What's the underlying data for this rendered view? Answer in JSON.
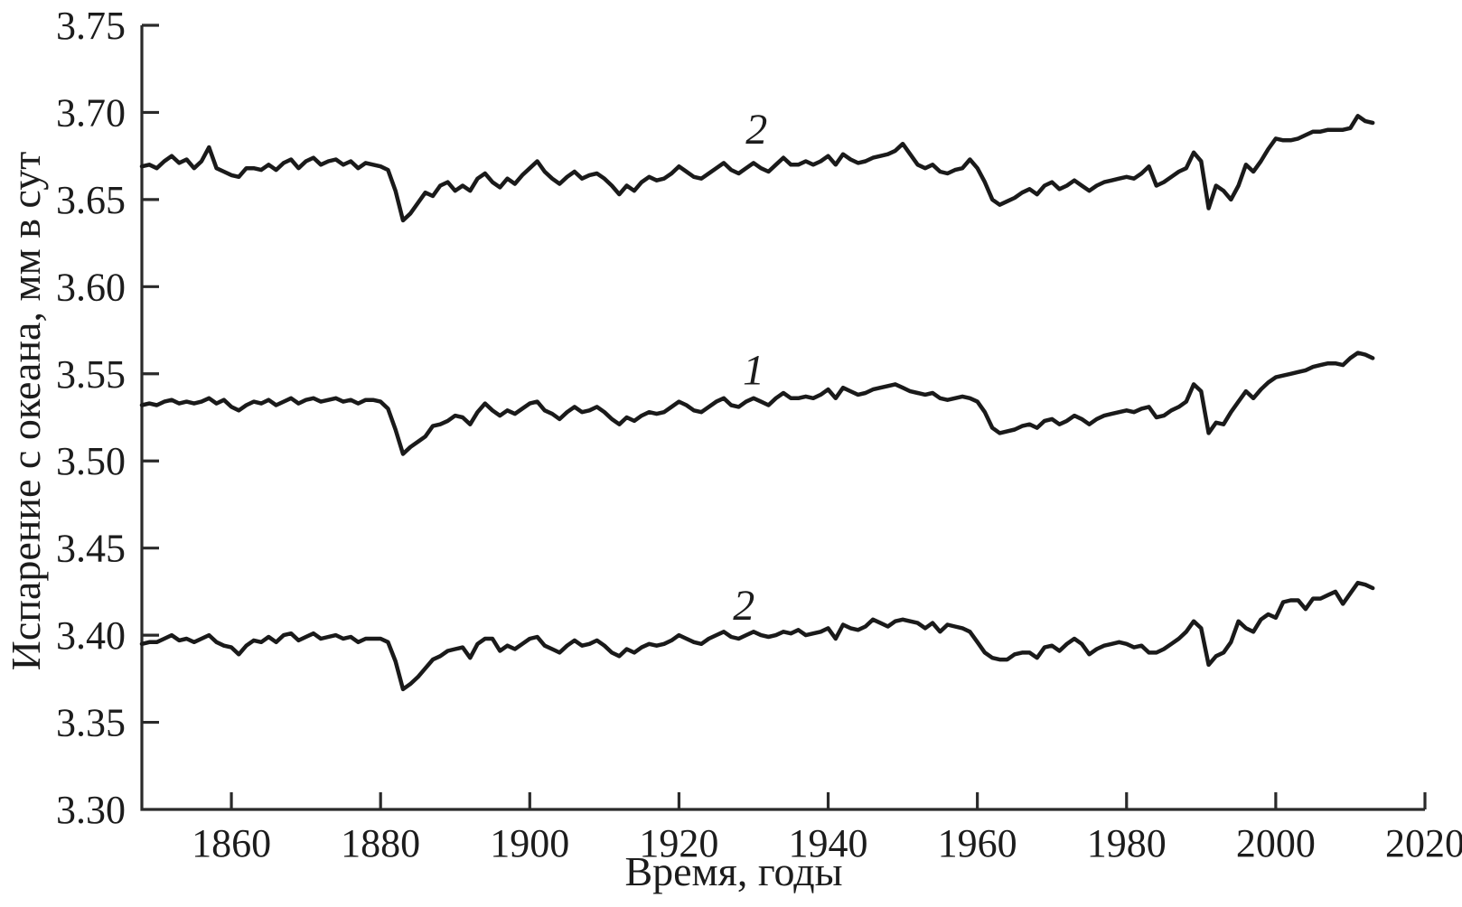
{
  "figure": {
    "background": "#ffffff",
    "line_color": "#1a1a1a",
    "axis_color": "#2a2a2a"
  },
  "chart_data": {
    "type": "line",
    "title": "",
    "xlabel": "Время, годы",
    "ylabel": "Испарение с океана, мм в сут",
    "xlim": [
      1848,
      2020
    ],
    "ylim": [
      3.3,
      3.75
    ],
    "x_ticks": [
      1860,
      1880,
      1900,
      1920,
      1940,
      1960,
      1980,
      2000,
      2020
    ],
    "y_ticks": [
      3.3,
      3.35,
      3.4,
      3.45,
      3.5,
      3.55,
      3.6,
      3.65,
      3.7,
      3.75
    ],
    "grid": false,
    "legend_position": "none",
    "x_start": 1848,
    "x_step": 1,
    "annotations": [
      {
        "text": "2",
        "year": 1930.4,
        "value": 3.682
      },
      {
        "text": "1",
        "year": 1930.0,
        "value": 3.544
      },
      {
        "text": "2",
        "year": 1928.7,
        "value": 3.409
      }
    ],
    "series": [
      {
        "name": "curve-2-upper",
        "label": "2",
        "values": [
          3.669,
          3.67,
          3.668,
          3.672,
          3.675,
          3.671,
          3.673,
          3.668,
          3.672,
          3.68,
          3.668,
          3.666,
          3.664,
          3.663,
          3.668,
          3.668,
          3.667,
          3.67,
          3.667,
          3.671,
          3.673,
          3.668,
          3.672,
          3.674,
          3.67,
          3.672,
          3.673,
          3.67,
          3.672,
          3.668,
          3.671,
          3.67,
          3.669,
          3.667,
          3.655,
          3.638,
          3.642,
          3.648,
          3.654,
          3.652,
          3.658,
          3.66,
          3.655,
          3.658,
          3.655,
          3.662,
          3.665,
          3.66,
          3.657,
          3.662,
          3.659,
          3.664,
          3.668,
          3.672,
          3.666,
          3.662,
          3.659,
          3.663,
          3.666,
          3.662,
          3.664,
          3.665,
          3.662,
          3.658,
          3.653,
          3.658,
          3.655,
          3.66,
          3.663,
          3.661,
          3.662,
          3.665,
          3.669,
          3.666,
          3.663,
          3.662,
          3.665,
          3.668,
          3.671,
          3.667,
          3.665,
          3.668,
          3.671,
          3.668,
          3.666,
          3.67,
          3.674,
          3.67,
          3.67,
          3.672,
          3.67,
          3.672,
          3.675,
          3.67,
          3.676,
          3.673,
          3.671,
          3.672,
          3.674,
          3.675,
          3.676,
          3.678,
          3.682,
          3.676,
          3.67,
          3.668,
          3.67,
          3.666,
          3.665,
          3.667,
          3.668,
          3.673,
          3.668,
          3.66,
          3.65,
          3.647,
          3.649,
          3.651,
          3.654,
          3.656,
          3.653,
          3.658,
          3.66,
          3.656,
          3.658,
          3.661,
          3.658,
          3.655,
          3.658,
          3.66,
          3.661,
          3.662,
          3.663,
          3.662,
          3.665,
          3.669,
          3.658,
          3.66,
          3.663,
          3.666,
          3.668,
          3.677,
          3.672,
          3.645,
          3.658,
          3.655,
          3.65,
          3.658,
          3.67,
          3.666,
          3.672,
          3.679,
          3.685,
          3.684,
          3.684,
          3.685,
          3.687,
          3.689,
          3.689,
          3.69,
          3.69,
          3.69,
          3.691,
          3.698,
          3.695,
          3.694
        ]
      },
      {
        "name": "curve-1-middle",
        "label": "1",
        "values": [
          3.532,
          3.533,
          3.532,
          3.534,
          3.535,
          3.533,
          3.534,
          3.533,
          3.534,
          3.536,
          3.533,
          3.535,
          3.531,
          3.529,
          3.532,
          3.534,
          3.533,
          3.535,
          3.532,
          3.534,
          3.536,
          3.533,
          3.535,
          3.536,
          3.534,
          3.535,
          3.536,
          3.534,
          3.535,
          3.533,
          3.535,
          3.535,
          3.534,
          3.53,
          3.518,
          3.504,
          3.508,
          3.511,
          3.514,
          3.52,
          3.521,
          3.523,
          3.526,
          3.525,
          3.521,
          3.528,
          3.533,
          3.529,
          3.526,
          3.529,
          3.527,
          3.53,
          3.533,
          3.534,
          3.529,
          3.527,
          3.524,
          3.528,
          3.531,
          3.528,
          3.529,
          3.531,
          3.528,
          3.524,
          3.521,
          3.525,
          3.523,
          3.526,
          3.528,
          3.527,
          3.528,
          3.531,
          3.534,
          3.532,
          3.529,
          3.528,
          3.531,
          3.534,
          3.536,
          3.532,
          3.531,
          3.534,
          3.536,
          3.534,
          3.532,
          3.536,
          3.539,
          3.536,
          3.536,
          3.537,
          3.536,
          3.538,
          3.541,
          3.536,
          3.542,
          3.54,
          3.538,
          3.539,
          3.541,
          3.542,
          3.543,
          3.544,
          3.542,
          3.54,
          3.539,
          3.538,
          3.539,
          3.536,
          3.535,
          3.536,
          3.537,
          3.536,
          3.534,
          3.528,
          3.519,
          3.516,
          3.517,
          3.518,
          3.52,
          3.521,
          3.519,
          3.523,
          3.524,
          3.521,
          3.523,
          3.526,
          3.524,
          3.521,
          3.524,
          3.526,
          3.527,
          3.528,
          3.529,
          3.528,
          3.53,
          3.531,
          3.525,
          3.526,
          3.529,
          3.531,
          3.534,
          3.544,
          3.54,
          3.516,
          3.522,
          3.521,
          3.528,
          3.534,
          3.54,
          3.536,
          3.541,
          3.545,
          3.548,
          3.549,
          3.55,
          3.551,
          3.552,
          3.554,
          3.555,
          3.556,
          3.556,
          3.555,
          3.559,
          3.562,
          3.561,
          3.559
        ]
      },
      {
        "name": "curve-2-lower",
        "label": "2",
        "values": [
          3.395,
          3.396,
          3.396,
          3.398,
          3.4,
          3.397,
          3.398,
          3.396,
          3.398,
          3.4,
          3.396,
          3.394,
          3.393,
          3.389,
          3.394,
          3.397,
          3.396,
          3.399,
          3.396,
          3.4,
          3.401,
          3.397,
          3.399,
          3.401,
          3.398,
          3.399,
          3.4,
          3.398,
          3.399,
          3.396,
          3.398,
          3.398,
          3.398,
          3.396,
          3.385,
          3.369,
          3.372,
          3.376,
          3.381,
          3.386,
          3.388,
          3.391,
          3.392,
          3.393,
          3.387,
          3.395,
          3.398,
          3.398,
          3.391,
          3.394,
          3.392,
          3.395,
          3.398,
          3.399,
          3.394,
          3.392,
          3.39,
          3.394,
          3.397,
          3.394,
          3.395,
          3.397,
          3.394,
          3.39,
          3.388,
          3.392,
          3.39,
          3.393,
          3.395,
          3.394,
          3.395,
          3.397,
          3.4,
          3.398,
          3.396,
          3.395,
          3.398,
          3.4,
          3.402,
          3.399,
          3.398,
          3.4,
          3.402,
          3.4,
          3.399,
          3.4,
          3.402,
          3.401,
          3.403,
          3.4,
          3.401,
          3.402,
          3.404,
          3.398,
          3.406,
          3.404,
          3.403,
          3.405,
          3.409,
          3.407,
          3.405,
          3.408,
          3.409,
          3.408,
          3.407,
          3.404,
          3.407,
          3.402,
          3.406,
          3.405,
          3.404,
          3.402,
          3.396,
          3.39,
          3.387,
          3.386,
          3.386,
          3.389,
          3.39,
          3.39,
          3.387,
          3.393,
          3.394,
          3.391,
          3.395,
          3.398,
          3.395,
          3.389,
          3.392,
          3.394,
          3.395,
          3.396,
          3.395,
          3.393,
          3.394,
          3.39,
          3.39,
          3.392,
          3.395,
          3.398,
          3.402,
          3.408,
          3.404,
          3.383,
          3.388,
          3.39,
          3.396,
          3.408,
          3.404,
          3.402,
          3.409,
          3.412,
          3.41,
          3.419,
          3.42,
          3.42,
          3.415,
          3.421,
          3.421,
          3.423,
          3.425,
          3.418,
          3.424,
          3.43,
          3.429,
          3.427
        ]
      }
    ]
  }
}
